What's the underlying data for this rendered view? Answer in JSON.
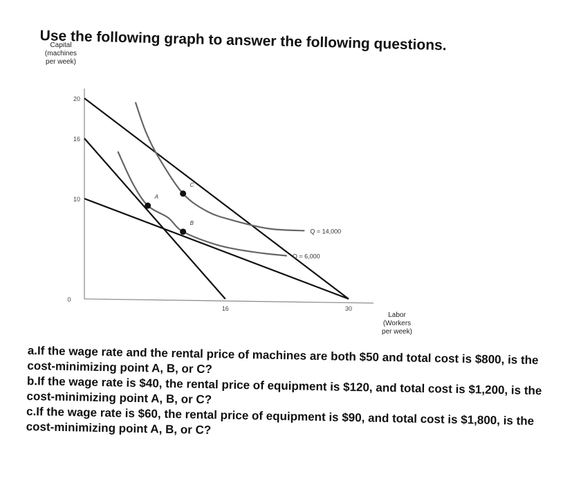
{
  "header": {
    "heading": "Use the following graph to answer the following questions."
  },
  "chart_data": {
    "type": "line",
    "xlabel": [
      "Labor",
      "(Workers",
      "per week)"
    ],
    "ylabel": [
      "Capital",
      "(machines",
      "per week)"
    ],
    "xlim": [
      0,
      30
    ],
    "ylim": [
      0,
      20
    ],
    "x_ticks": [
      "16",
      "30"
    ],
    "y_ticks": [
      "20",
      "16",
      "10"
    ],
    "origin_label": "0",
    "grid": false,
    "isocost_lines": [
      {
        "points": [
          [
            0,
            20
          ],
          [
            30,
            0
          ]
        ]
      },
      {
        "points": [
          [
            0,
            16
          ],
          [
            16,
            0
          ]
        ]
      },
      {
        "points": [
          [
            0,
            10
          ],
          [
            30,
            0
          ]
        ]
      }
    ],
    "isoquants": [
      {
        "label": "Q = 14,000",
        "points": [
          [
            5.8,
            19.6
          ],
          [
            7,
            16.6
          ],
          [
            8.5,
            14
          ],
          [
            11.2,
            10.5
          ],
          [
            14,
            8.7
          ],
          [
            17,
            7.8
          ],
          [
            21,
            7
          ],
          [
            25,
            6.8
          ]
        ]
      },
      {
        "label": "Q = 6,000",
        "points": [
          [
            3.8,
            14.7
          ],
          [
            5.5,
            11.5
          ],
          [
            7.2,
            9.3
          ],
          [
            9.5,
            8.1
          ],
          [
            11.2,
            6.7
          ],
          [
            15,
            5.4
          ],
          [
            19,
            4.7
          ],
          [
            23,
            4.3
          ]
        ]
      }
    ],
    "points": [
      {
        "label": "A",
        "x": 7.2,
        "y": 9.3
      },
      {
        "label": "B",
        "x": 11.2,
        "y": 6.7
      },
      {
        "label": "C",
        "x": 11.2,
        "y": 10.5
      }
    ]
  },
  "questions": [
    "a.If the wage rate and the rental price of machines are both $50 and total cost is $800, is the cost-minimizing point A, B, or C?",
    "b.If the wage rate is $40, the rental price of equipment is $120, and total cost is $1,200, is the cost-minimizing point A, B, or C?",
    "c.If the wage rate is $60, the rental price of equipment is $90, and total cost is $1,800, is the cost-minimizing point A, B, or C?"
  ]
}
